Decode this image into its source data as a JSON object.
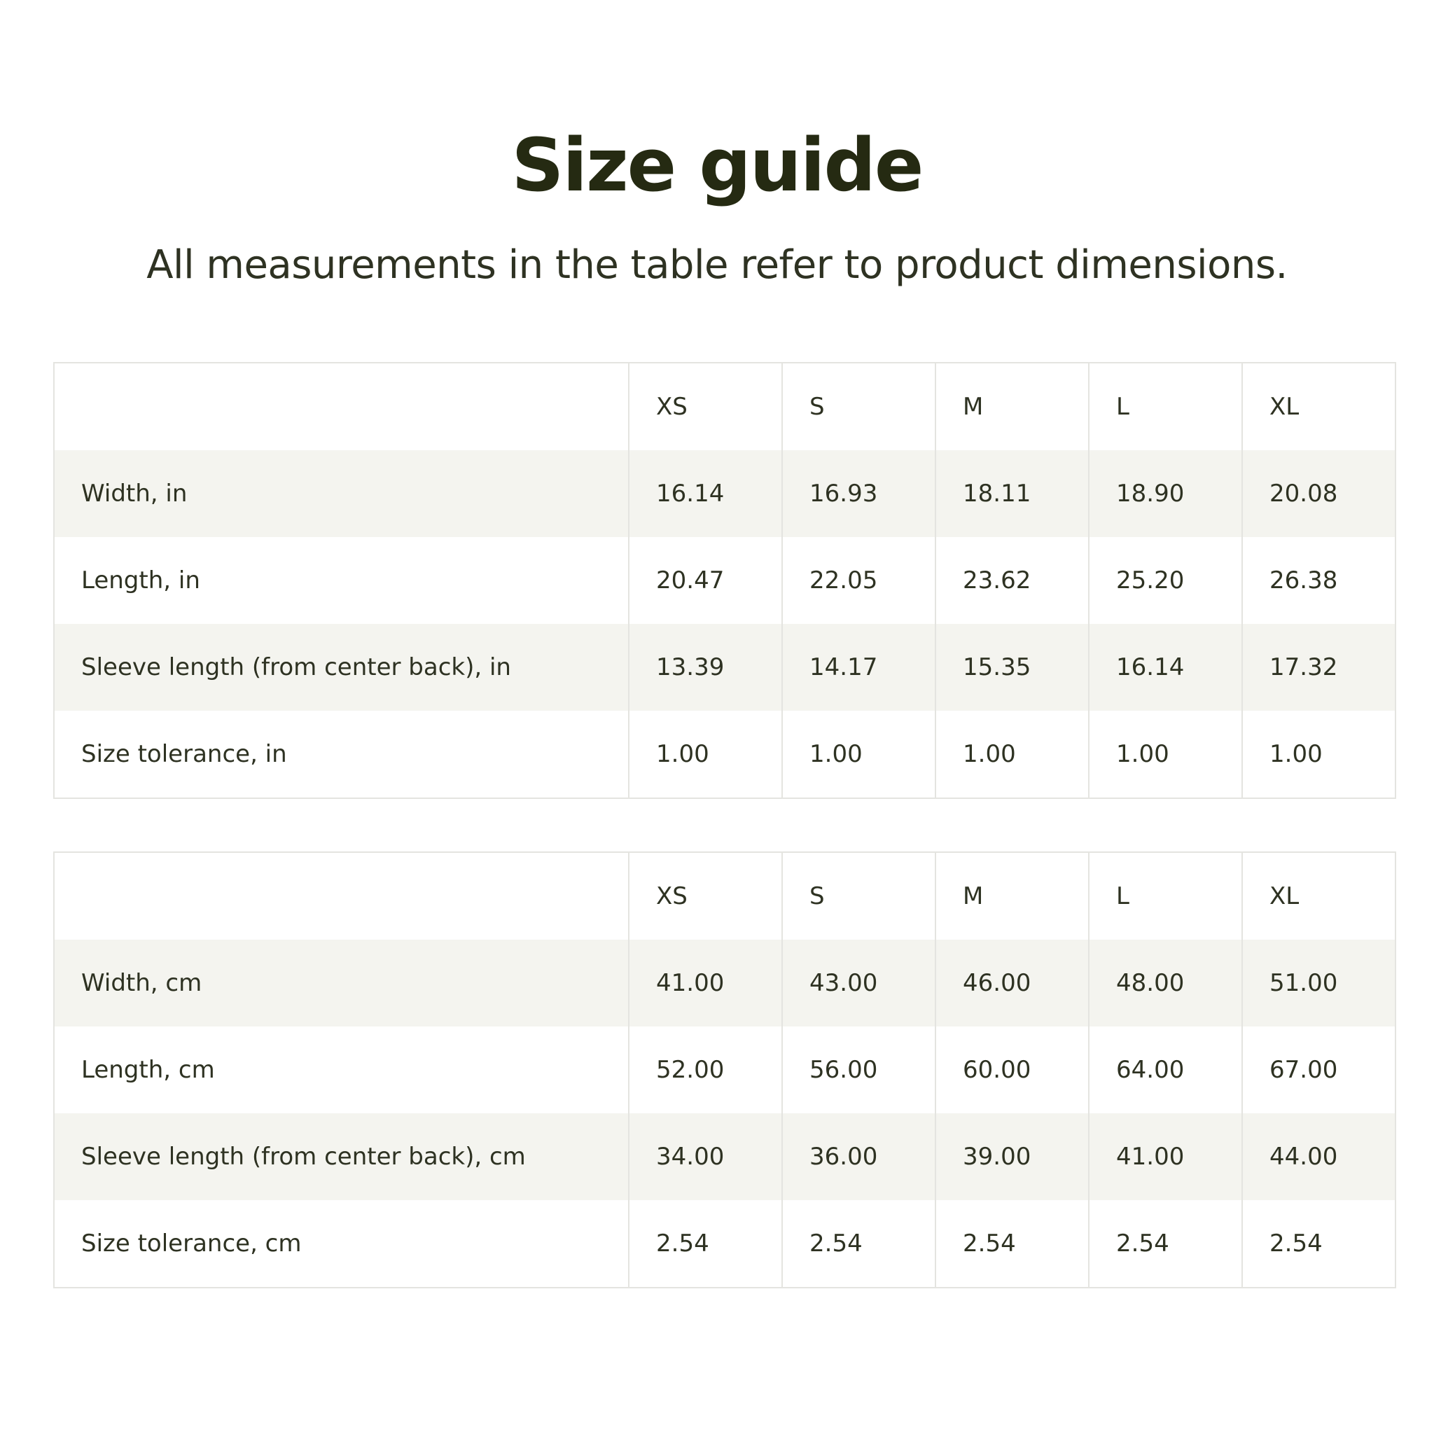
{
  "title": "Size guide",
  "subtitle": "All measurements in the table refer to product dimensions.",
  "colors": {
    "text": "#2e3222",
    "title": "#252a12",
    "stripe": "#f4f4ef",
    "border": "#e4e4e0"
  },
  "tables": [
    {
      "headers": [
        "",
        "XS",
        "S",
        "M",
        "L",
        "XL"
      ],
      "rows": [
        [
          "Width, in",
          "16.14",
          "16.93",
          "18.11",
          "18.90",
          "20.08"
        ],
        [
          "Length, in",
          "20.47",
          "22.05",
          "23.62",
          "25.20",
          "26.38"
        ],
        [
          "Sleeve length (from center back), in",
          "13.39",
          "14.17",
          "15.35",
          "16.14",
          "17.32"
        ],
        [
          "Size tolerance, in",
          "1.00",
          "1.00",
          "1.00",
          "1.00",
          "1.00"
        ]
      ]
    },
    {
      "headers": [
        "",
        "XS",
        "S",
        "M",
        "L",
        "XL"
      ],
      "rows": [
        [
          "Width, cm",
          "41.00",
          "43.00",
          "46.00",
          "48.00",
          "51.00"
        ],
        [
          "Length, cm",
          "52.00",
          "56.00",
          "60.00",
          "64.00",
          "67.00"
        ],
        [
          "Sleeve length (from center back), cm",
          "34.00",
          "36.00",
          "39.00",
          "41.00",
          "44.00"
        ],
        [
          "Size tolerance, cm",
          "2.54",
          "2.54",
          "2.54",
          "2.54",
          "2.54"
        ]
      ]
    }
  ]
}
